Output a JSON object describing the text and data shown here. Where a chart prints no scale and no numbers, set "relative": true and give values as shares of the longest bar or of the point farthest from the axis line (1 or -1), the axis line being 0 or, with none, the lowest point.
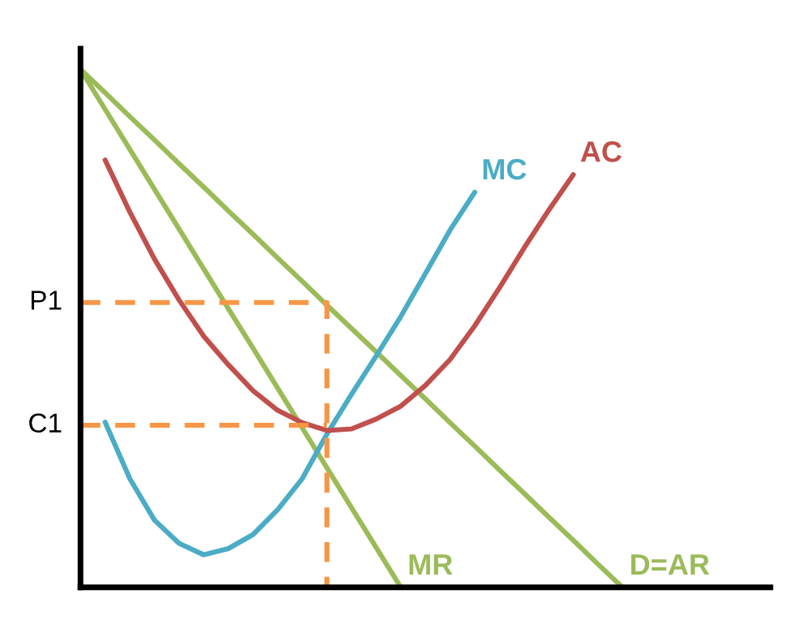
{
  "chart_data": {
    "type": "line",
    "relative": true,
    "categories": [
      null,
      null,
      null,
      null,
      null,
      null,
      null,
      null,
      null,
      null,
      null,
      null,
      null,
      null,
      null,
      null,
      null,
      null,
      null,
      null,
      null,
      null,
      null,
      null,
      null,
      null,
      null,
      null,
      null
    ],
    "series": [
      {
        "name": "D=AR",
        "color": "#9bbb59",
        "values": [
          1,
          0.955,
          0.909,
          0.864,
          0.818,
          0.773,
          0.727,
          0.682,
          0.636,
          0.591,
          0.545,
          0.5,
          0.455,
          0.409,
          0.364,
          0.318,
          0.273,
          0.227,
          0.182,
          0.136,
          0.091,
          0.045,
          0,
          null,
          null,
          null,
          null,
          null,
          null
        ]
      },
      {
        "name": "MR",
        "color": "#9bbb59",
        "values": [
          1,
          0.923,
          0.846,
          0.769,
          0.692,
          0.615,
          0.538,
          0.462,
          0.385,
          0.308,
          0.231,
          0.154,
          0.077,
          0,
          null,
          null,
          null,
          null,
          null,
          null,
          null,
          null,
          null,
          null,
          null,
          null,
          null,
          null,
          null
        ]
      },
      {
        "name": "MC",
        "color": "#4bacc6",
        "values": [
          null,
          0.319,
          0.21,
          0.13,
          0.085,
          0.063,
          0.075,
          0.102,
          0.15,
          0.21,
          0.296,
          0.373,
          0.447,
          0.523,
          0.606,
          0.69,
          0.763,
          null,
          null,
          null,
          null,
          null,
          null,
          null,
          null,
          null,
          null,
          null,
          null
        ]
      },
      {
        "name": "AC",
        "color": "#c0504d",
        "values": [
          null,
          0.825,
          0.725,
          0.634,
          0.555,
          0.485,
          0.43,
          0.38,
          0.342,
          0.318,
          0.303,
          0.306,
          0.325,
          0.35,
          0.39,
          0.44,
          0.505,
          0.578,
          0.655,
          0.728,
          0.797,
          null,
          null,
          null,
          null,
          null,
          null,
          null,
          null
        ]
      },
      {
        "type": "step",
        "name": "P1",
        "color": "#f79646",
        "line_style": "dashed",
        "values": [
          0.55,
          0.55,
          0.55,
          0.55,
          0.55,
          0.55,
          0.55,
          0.55,
          0.55,
          0.55,
          0,
          null,
          null,
          null,
          null,
          null,
          null,
          null,
          null,
          null,
          null,
          null,
          null,
          null,
          null,
          null,
          null,
          null,
          null
        ]
      },
      {
        "name": "C1",
        "color": "#f79646",
        "line_style": "dashed",
        "values": [
          0.313,
          0.313,
          0.313,
          0.313,
          0.313,
          0.313,
          0.313,
          0.313,
          0.313,
          0.313,
          0.313,
          null,
          null,
          null,
          null,
          null,
          null,
          null,
          null,
          null,
          null,
          null,
          null,
          null,
          null,
          null,
          null,
          null,
          null
        ]
      }
    ]
  }
}
